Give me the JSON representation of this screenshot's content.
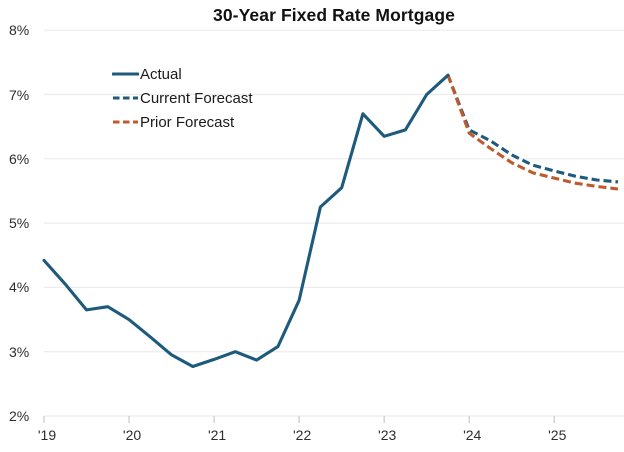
{
  "page_title": "30-Year Fixed Rate Mortgage",
  "colors": {
    "actual_line": "#1e5a7c",
    "current_forecast_line": "#1e5a7c",
    "prior_forecast_line": "#c05a2e",
    "gridline": "#ececec",
    "tick": "#c8c8c8",
    "axis_text": "#2d2d2d",
    "title_text": "#111111",
    "background": "#ffffff"
  },
  "chart_data": {
    "type": "line",
    "title": "30-Year Fixed Rate Mortgage",
    "xlabel": "",
    "ylabel": "",
    "xlim": [
      2019,
      2025.82
    ],
    "ylim": [
      2,
      8
    ],
    "grid": "horizontal",
    "legend_position": "upper-left-inside",
    "y_ticks": [
      {
        "label": "2%",
        "value": 2
      },
      {
        "label": "3%",
        "value": 3
      },
      {
        "label": "4%",
        "value": 4
      },
      {
        "label": "5%",
        "value": 5
      },
      {
        "label": "6%",
        "value": 6
      },
      {
        "label": "7%",
        "value": 7
      },
      {
        "label": "8%",
        "value": 8
      }
    ],
    "x_ticks": [
      {
        "label": "'19",
        "value": 2019
      },
      {
        "label": "'20",
        "value": 2020
      },
      {
        "label": "'21",
        "value": 2021
      },
      {
        "label": "'22",
        "value": 2022
      },
      {
        "label": "'23",
        "value": 2023
      },
      {
        "label": "'24",
        "value": 2024
      },
      {
        "label": "'25",
        "value": 2025
      }
    ],
    "series": [
      {
        "name": "Actual",
        "style": "solid",
        "color": "#1e5a7c",
        "x": [
          2019.0,
          2019.25,
          2019.5,
          2019.75,
          2020.0,
          2020.25,
          2020.5,
          2020.75,
          2021.0,
          2021.25,
          2021.5,
          2021.75,
          2022.0,
          2022.25,
          2022.5,
          2022.75,
          2023.0,
          2023.25,
          2023.5,
          2023.75
        ],
        "values": [
          4.42,
          4.05,
          3.65,
          3.7,
          3.5,
          3.23,
          2.95,
          2.77,
          2.88,
          3.0,
          2.87,
          3.08,
          3.8,
          5.25,
          5.55,
          6.7,
          6.35,
          6.45,
          7.0,
          7.3
        ]
      },
      {
        "name": "Current Forecast",
        "style": "dashed",
        "color": "#1e5a7c",
        "x": [
          2023.75,
          2024.0,
          2024.25,
          2024.5,
          2024.75,
          2025.0,
          2025.25,
          2025.5,
          2025.75
        ],
        "values": [
          7.3,
          6.45,
          6.28,
          6.06,
          5.9,
          5.81,
          5.73,
          5.67,
          5.64
        ]
      },
      {
        "name": "Prior Forecast",
        "style": "dashed",
        "color": "#c05a2e",
        "x": [
          2023.75,
          2024.0,
          2024.25,
          2024.5,
          2024.75,
          2025.0,
          2025.25,
          2025.5,
          2025.75
        ],
        "values": [
          7.3,
          6.4,
          6.16,
          5.94,
          5.78,
          5.7,
          5.62,
          5.57,
          5.53
        ]
      }
    ]
  }
}
